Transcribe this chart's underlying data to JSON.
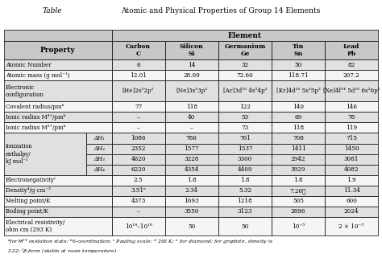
{
  "title_label": "Table",
  "title_text": "Atomic and Physical Properties of Group 14 Elements",
  "header_bg": "#c8c8c8",
  "alt_row_bg": "#e0e0e0",
  "white_bg": "#f5f5f5",
  "elements": [
    "Carbon\nC",
    "Silicon\nSi",
    "Germanium\nGe",
    "Tin\nSn",
    "Lead\nPb"
  ],
  "rows": [
    {
      "property": "Atomic Number",
      "values": [
        "6",
        "14",
        "32",
        "50",
        "82"
      ],
      "ionization": false
    },
    {
      "property": "Atomic mass (g mol⁻¹)",
      "values": [
        "12.01",
        "28.09",
        "72.60",
        "118.71",
        "207.2"
      ],
      "ionization": false
    },
    {
      "property": "Electronic\nconfiguration",
      "values": [
        "[He]2s²2p²",
        "[Ne]3s²3p²",
        "[Ar]3d¹⁰ 4s²4p²",
        "[Kr]4d¹⁰ 5s²5p²",
        "[Xe]4f¹⁴ 5d¹⁰ 6s²6p²"
      ],
      "ionization": false
    },
    {
      "property": "Covalent radius/pmᵇ",
      "values": [
        "77",
        "118",
        "122",
        "140",
        "146"
      ],
      "ionization": false
    },
    {
      "property": "Ionic radius M⁴⁺/pmᵇ",
      "values": [
        "–",
        "40",
        "53",
        "69",
        "78"
      ],
      "ionization": false
    },
    {
      "property": "Ionic radius M²⁺/pmᵇ",
      "values": [
        "–",
        "–",
        "73",
        "118",
        "119"
      ],
      "ionization": false
    },
    {
      "property": "Ionization\nenthalpy/\nkJ mol⁻¹",
      "sub": [
        "ΔH₁",
        "ΔH₂",
        "ΔH₃",
        "ΔH₄"
      ],
      "values": [
        [
          "1086",
          "2352",
          "4620",
          "6220"
        ],
        [
          "786",
          "1577",
          "3228",
          "4354"
        ],
        [
          "761",
          "1537",
          "3300",
          "4409"
        ],
        [
          "708",
          "1411",
          "2942",
          "3929"
        ],
        [
          "715",
          "1450",
          "3081",
          "4082"
        ]
      ],
      "ionization": true
    },
    {
      "property": "Electronegativityᶜ",
      "values": [
        "2.5",
        "1.8",
        "1.8",
        "1.8",
        "1.9"
      ],
      "ionization": false
    },
    {
      "property": "Densityᵈ/g cm⁻³",
      "values": [
        "3.51ᵉ",
        "2.34",
        "5.32",
        "7.26ᷟ",
        "11.34"
      ],
      "ionization": false
    },
    {
      "property": "Melting point/K",
      "values": [
        "4373",
        "1693",
        "1218",
        "505",
        "600"
      ],
      "ionization": false
    },
    {
      "property": "Boiling point/K",
      "values": [
        "–",
        "3550",
        "3123",
        "2896",
        "2024"
      ],
      "ionization": false
    },
    {
      "property": "Electrical resistivity/\nohm cm (293 K)",
      "values": [
        "10¹⁴–10¹⁶",
        "50",
        "50",
        "10⁻⁵",
        "2 × 10⁻⁵"
      ],
      "ionization": false
    }
  ]
}
